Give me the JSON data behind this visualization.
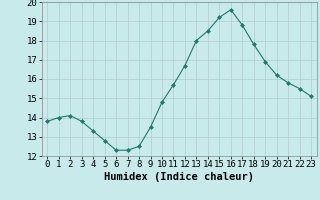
{
  "x": [
    0,
    1,
    2,
    3,
    4,
    5,
    6,
    7,
    8,
    9,
    10,
    11,
    12,
    13,
    14,
    15,
    16,
    17,
    18,
    19,
    20,
    21,
    22,
    23
  ],
  "y": [
    13.8,
    14.0,
    14.1,
    13.8,
    13.3,
    12.8,
    12.3,
    12.3,
    12.5,
    13.5,
    14.8,
    15.7,
    16.7,
    18.0,
    18.5,
    19.2,
    19.6,
    18.8,
    17.8,
    16.9,
    16.2,
    15.8,
    15.5,
    15.1
  ],
  "line_color": "#1f7a6e",
  "marker": "D",
  "markersize": 2.0,
  "linewidth": 0.8,
  "xlabel": "Humidex (Indice chaleur)",
  "ylim": [
    12,
    20
  ],
  "xlim_min": -0.5,
  "xlim_max": 23.5,
  "yticks": [
    12,
    13,
    14,
    15,
    16,
    17,
    18,
    19,
    20
  ],
  "xticks": [
    0,
    1,
    2,
    3,
    4,
    5,
    6,
    7,
    8,
    9,
    10,
    11,
    12,
    13,
    14,
    15,
    16,
    17,
    18,
    19,
    20,
    21,
    22,
    23
  ],
  "bg_color": "#c8eaea",
  "grid_color": "#b0cccc",
  "xlabel_fontsize": 7.5,
  "tick_fontsize": 6.5
}
